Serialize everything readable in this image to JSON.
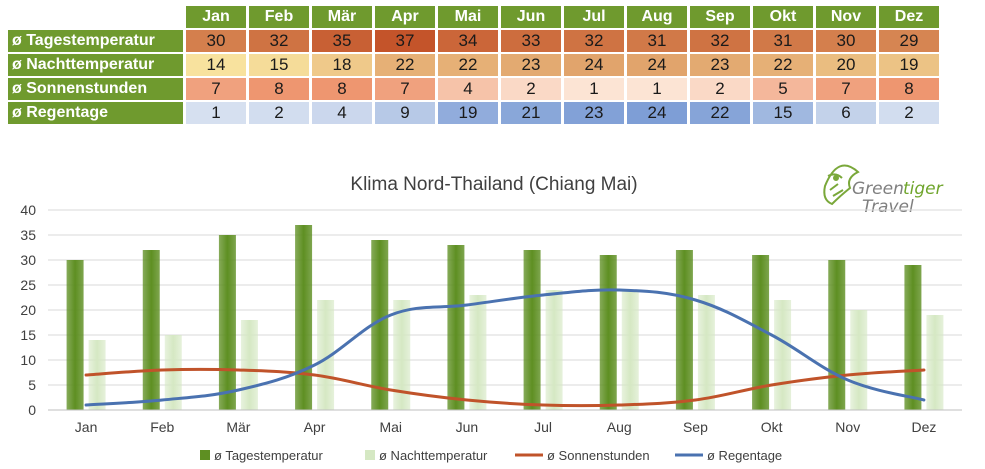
{
  "table": {
    "months": [
      "Jan",
      "Feb",
      "Mär",
      "Apr",
      "Mai",
      "Jun",
      "Jul",
      "Aug",
      "Sep",
      "Okt",
      "Nov",
      "Dez"
    ],
    "rows": [
      {
        "label": "ø Tagestemperatur",
        "values": [
          30,
          32,
          35,
          37,
          34,
          33,
          32,
          31,
          32,
          31,
          30,
          29
        ]
      },
      {
        "label": "ø Nachttemperatur",
        "values": [
          14,
          15,
          18,
          22,
          22,
          23,
          24,
          24,
          23,
          22,
          20,
          19
        ]
      },
      {
        "label": "ø Sonnenstunden",
        "values": [
          7,
          8,
          8,
          7,
          4,
          2,
          1,
          1,
          2,
          5,
          7,
          8
        ]
      },
      {
        "label": "ø Regentage",
        "values": [
          1,
          2,
          4,
          9,
          19,
          21,
          23,
          24,
          22,
          15,
          6,
          2
        ]
      }
    ]
  },
  "logo": {
    "word1": "Green",
    "word2": "tiger",
    "word3": "Travel"
  },
  "chart_data": {
    "type": "bar",
    "title": "Klima Nord-Thailand (Chiang Mai)",
    "categories": [
      "Jan",
      "Feb",
      "Mär",
      "Apr",
      "Mai",
      "Jun",
      "Jul",
      "Aug",
      "Sep",
      "Okt",
      "Nov",
      "Dez"
    ],
    "ylim": [
      0,
      40
    ],
    "yticks": [
      0,
      5,
      10,
      15,
      20,
      25,
      30,
      35,
      40
    ],
    "grid": true,
    "legend_position": "bottom",
    "series": [
      {
        "name": "ø Tagestemperatur",
        "type": "bar",
        "color": "#5e8f22",
        "values": [
          30,
          32,
          35,
          37,
          34,
          33,
          32,
          31,
          32,
          31,
          30,
          29
        ]
      },
      {
        "name": "ø Nachttemperatur",
        "type": "bar",
        "color": "#d5e8c3",
        "values": [
          14,
          15,
          18,
          22,
          22,
          23,
          24,
          24,
          23,
          22,
          20,
          19
        ]
      },
      {
        "name": "ø Sonnenstunden",
        "type": "line",
        "color": "#c0532a",
        "values": [
          7,
          8,
          8,
          7,
          4,
          2,
          1,
          1,
          2,
          5,
          7,
          8
        ]
      },
      {
        "name": "ø Regentage",
        "type": "line",
        "color": "#4a72b0",
        "values": [
          1,
          2,
          4,
          9,
          19,
          21,
          23,
          24,
          22,
          15,
          6,
          2
        ]
      }
    ]
  }
}
